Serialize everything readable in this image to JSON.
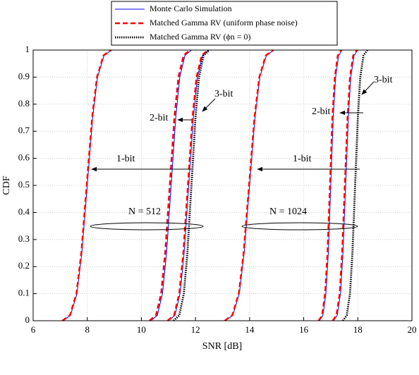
{
  "chart_data": {
    "type": "line",
    "xlabel": "SNR [dB]",
    "ylabel": "CDF",
    "xlim": [
      6,
      20
    ],
    "xticks": [
      6,
      8,
      10,
      12,
      14,
      16,
      18,
      20
    ],
    "ylim": [
      0,
      1
    ],
    "yticks": [
      0,
      0.1,
      0.2,
      0.3,
      0.4,
      0.5,
      0.6,
      0.7,
      0.8,
      0.9,
      1
    ],
    "grid": true,
    "legend": "top",
    "series": [
      {
        "name": "Monte Carlo Simulation",
        "color": "#0000ff",
        "dash": "solid",
        "curves": [
          {
            "x": [
              7.1,
              7.38,
              7.62,
              7.8,
              8.0,
              8.2,
              8.38,
              8.62,
              8.9
            ],
            "values": [
              0,
              0.02,
              0.1,
              0.25,
              0.5,
              0.75,
              0.9,
              0.98,
              1
            ]
          },
          {
            "x": [
              10.35,
              10.59,
              10.78,
              10.93,
              11.1,
              11.27,
              11.42,
              11.61,
              11.85
            ],
            "values": [
              0,
              0.02,
              0.1,
              0.25,
              0.5,
              0.75,
              0.9,
              0.98,
              1
            ]
          },
          {
            "x": [
              11.0,
              11.24,
              11.43,
              11.58,
              11.75,
              11.92,
              12.07,
              12.26,
              12.5
            ],
            "values": [
              0,
              0.02,
              0.1,
              0.25,
              0.5,
              0.75,
              0.9,
              0.98,
              1
            ]
          },
          {
            "x": [
              13.1,
              13.38,
              13.62,
              13.8,
              14.0,
              14.2,
              14.38,
              14.62,
              14.9
            ],
            "values": [
              0,
              0.02,
              0.1,
              0.25,
              0.5,
              0.75,
              0.9,
              0.98,
              1
            ]
          },
          {
            "x": [
              16.58,
              16.71,
              16.82,
              16.91,
              17.0,
              17.09,
              17.18,
              17.29,
              17.42
            ],
            "values": [
              0,
              0.02,
              0.1,
              0.25,
              0.5,
              0.75,
              0.9,
              0.98,
              1
            ]
          },
          {
            "x": [
              17.1,
              17.24,
              17.36,
              17.45,
              17.55,
              17.65,
              17.74,
              17.86,
              18.0
            ],
            "values": [
              0,
              0.02,
              0.1,
              0.25,
              0.5,
              0.75,
              0.9,
              0.98,
              1
            ]
          }
        ]
      },
      {
        "name": "Matched Gamma RV (uniform phase noise)",
        "color": "#ff0000",
        "dash": "dashed",
        "curves": [
          {
            "x": [
              7.08,
              7.36,
              7.6,
              7.78,
              7.98,
              8.18,
              8.36,
              8.6,
              8.88
            ],
            "values": [
              0,
              0.02,
              0.1,
              0.25,
              0.5,
              0.75,
              0.9,
              0.98,
              1
            ]
          },
          {
            "x": [
              10.3,
              10.54,
              10.73,
              10.88,
              11.05,
              11.22,
              11.37,
              11.56,
              11.8
            ],
            "values": [
              0,
              0.02,
              0.1,
              0.25,
              0.5,
              0.75,
              0.9,
              0.98,
              1
            ]
          },
          {
            "x": [
              10.97,
              11.21,
              11.4,
              11.55,
              11.72,
              11.89,
              12.04,
              12.23,
              12.47
            ],
            "values": [
              0,
              0.02,
              0.1,
              0.25,
              0.5,
              0.75,
              0.9,
              0.98,
              1
            ]
          },
          {
            "x": [
              13.08,
              13.36,
              13.6,
              13.78,
              13.98,
              14.18,
              14.36,
              14.6,
              14.88
            ],
            "values": [
              0,
              0.02,
              0.1,
              0.25,
              0.5,
              0.75,
              0.9,
              0.98,
              1
            ]
          },
          {
            "x": [
              16.55,
              16.68,
              16.79,
              16.88,
              16.97,
              17.06,
              17.15,
              17.26,
              17.39
            ],
            "values": [
              0,
              0.02,
              0.1,
              0.25,
              0.5,
              0.75,
              0.9,
              0.98,
              1
            ]
          },
          {
            "x": [
              17.07,
              17.21,
              17.33,
              17.42,
              17.52,
              17.62,
              17.71,
              17.83,
              17.97
            ],
            "values": [
              0,
              0.02,
              0.1,
              0.25,
              0.5,
              0.75,
              0.9,
              0.98,
              1
            ]
          }
        ]
      },
      {
        "name": "Matched Gamma RV (ϕn = 0)",
        "color": "#000000",
        "dash": "dotted",
        "curves": [
          {
            "x": [
              11.19,
              11.4,
              11.57,
              11.7,
              11.85,
              12.0,
              12.13,
              12.3,
              12.51
            ],
            "values": [
              0,
              0.02,
              0.1,
              0.25,
              0.5,
              0.75,
              0.9,
              0.98,
              1
            ]
          },
          {
            "x": [
              17.45,
              17.59,
              17.71,
              17.8,
              17.9,
              18.0,
              18.09,
              18.21,
              18.35
            ],
            "values": [
              0,
              0.02,
              0.1,
              0.25,
              0.5,
              0.75,
              0.9,
              0.98,
              1
            ]
          }
        ]
      }
    ],
    "annotations": [
      "1-bit",
      "2-bit",
      "3-bit",
      "N = 512",
      "1-bit",
      "2-bit",
      "3-bit",
      "N = 1024"
    ]
  }
}
